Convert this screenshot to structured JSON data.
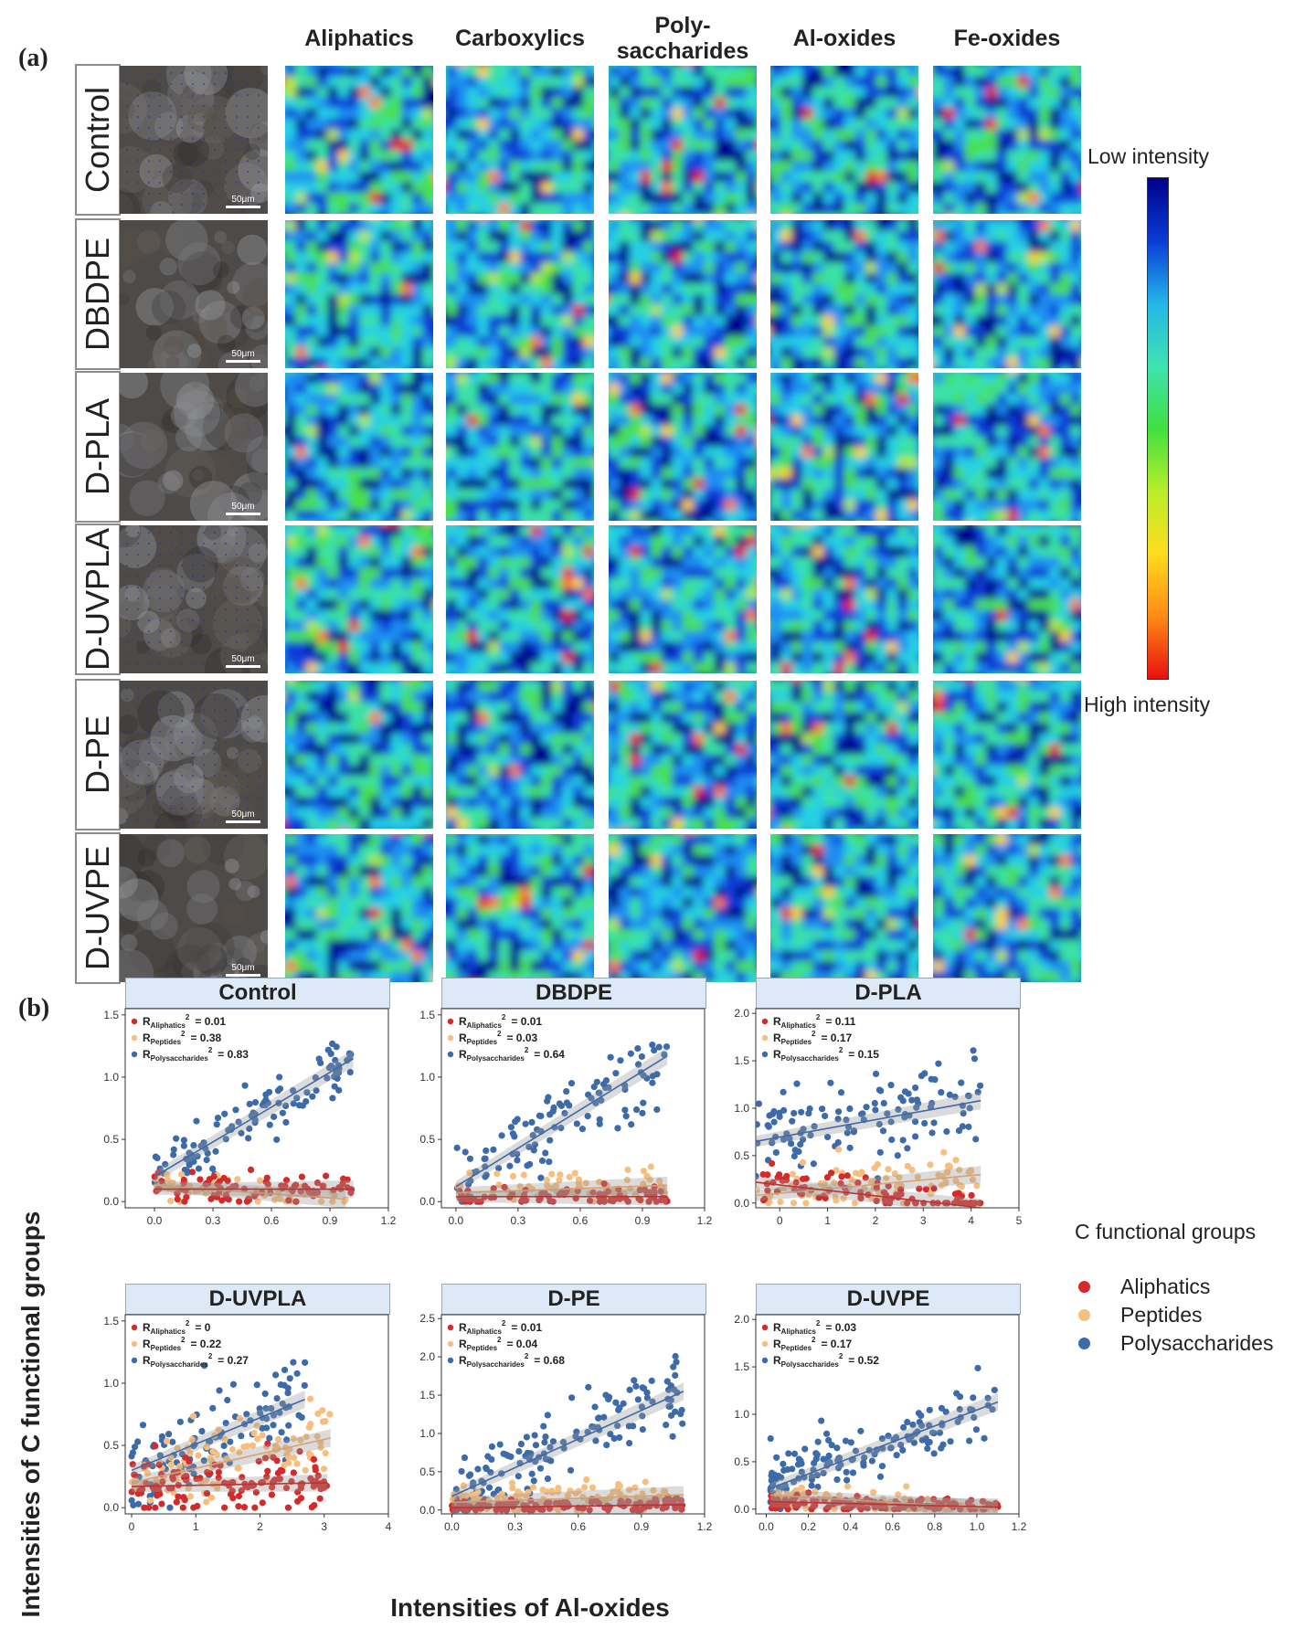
{
  "panel_a_label": "(a)",
  "panel_b_label": "(b)",
  "columns": [
    "Aliphatics",
    "Carboxylics",
    "Poly-\nsaccharides",
    "Al-oxides",
    "Fe-oxides"
  ],
  "rows": [
    "Control",
    "DBDPE",
    "D-PLA",
    "D-UVPLA",
    "D-PE",
    "D-UVPE"
  ],
  "scale_bar_label": "50μm",
  "colorbar": {
    "top_label": "Low intensity",
    "bottom_label": "High intensity",
    "colors": [
      "#00008b",
      "#0a3bd6",
      "#23b6e8",
      "#3de3b0",
      "#40e040",
      "#b8ee2a",
      "#ffdc1e",
      "#ff8a14",
      "#e81010"
    ]
  },
  "legend": {
    "title": "C functional groups",
    "items": [
      {
        "label": "Aliphatics",
        "color": "#d42a2a"
      },
      {
        "label": "Peptides",
        "color": "#f7bf7f"
      },
      {
        "label": "Polysaccharides",
        "color": "#3d6aa8"
      }
    ]
  },
  "y_axis_label": "Intensities of C functional groups",
  "x_axis_label": "Intensities of Al-oxides",
  "chart_data": [
    {
      "type": "scatter",
      "title": "Control",
      "xlim": [
        -0.15,
        1.2
      ],
      "ylim": [
        -0.05,
        1.55
      ],
      "xticks": [
        0,
        0.3,
        0.6,
        0.9,
        1.2
      ],
      "xtick_labels": [
        "0.0",
        "0.3",
        "0.6",
        "0.9",
        "1.2"
      ],
      "yticks": [
        0,
        0.5,
        1.0,
        1.5
      ],
      "ytick_labels": [
        "0.0",
        "0.5",
        "1.0",
        "1.5"
      ],
      "annotations": [
        {
          "sub": "Aliphatics",
          "value": "= 0.01"
        },
        {
          "sub": "Peptides",
          "value": "= 0.38"
        },
        {
          "sub": "Polysaccharides",
          "value": "= 0.83"
        }
      ],
      "series": [
        {
          "name": "Polysaccharides",
          "n": 110,
          "x": [
            0,
            1.02
          ],
          "fit": [
            0.2,
            1.15
          ],
          "spread": 0.11
        },
        {
          "name": "Peptides",
          "n": 70,
          "x": [
            0,
            0.98
          ],
          "fit": [
            0.13,
            0.02
          ],
          "spread": 0.06
        },
        {
          "name": "Aliphatics",
          "n": 80,
          "x": [
            0,
            1.02
          ],
          "fit": [
            0.1,
            0.1
          ],
          "spread": 0.06
        }
      ]
    },
    {
      "type": "scatter",
      "title": "DBDPE",
      "xlim": [
        -0.07,
        1.2
      ],
      "ylim": [
        -0.05,
        1.55
      ],
      "xticks": [
        0,
        0.3,
        0.6,
        0.9,
        1.2
      ],
      "xtick_labels": [
        "0.0",
        "0.3",
        "0.6",
        "0.9",
        "1.2"
      ],
      "yticks": [
        0,
        0.5,
        1.0,
        1.5
      ],
      "ytick_labels": [
        "0.0",
        "0.5",
        "1.0",
        "1.5"
      ],
      "annotations": [
        {
          "sub": "Aliphatics",
          "value": "= 0.01"
        },
        {
          "sub": "Peptides",
          "value": "= 0.03"
        },
        {
          "sub": "Polysaccharides",
          "value": "= 0.64"
        }
      ],
      "series": [
        {
          "name": "Polysaccharides",
          "n": 110,
          "x": [
            0,
            1.02
          ],
          "fit": [
            0.12,
            1.17
          ],
          "spread": 0.18
        },
        {
          "name": "Peptides",
          "n": 70,
          "x": [
            0,
            1.02
          ],
          "fit": [
            0.07,
            0.13
          ],
          "spread": 0.07
        },
        {
          "name": "Aliphatics",
          "n": 80,
          "x": [
            0,
            1.02
          ],
          "fit": [
            0.04,
            0.04
          ],
          "spread": 0.04
        }
      ]
    },
    {
      "type": "scatter",
      "title": "D-PLA",
      "xlim": [
        -0.5,
        5
      ],
      "ylim": [
        -0.05,
        2.05
      ],
      "xticks": [
        0,
        1,
        2,
        3,
        4,
        5
      ],
      "xtick_labels": [
        "0",
        "1",
        "2",
        "3",
        "4",
        "5"
      ],
      "yticks": [
        0,
        0.5,
        1.0,
        1.5,
        2.0
      ],
      "ytick_labels": [
        "0.0",
        "0.5",
        "1.0",
        "1.5",
        "2.0"
      ],
      "annotations": [
        {
          "sub": "Aliphatics",
          "value": "= 0.11"
        },
        {
          "sub": "Peptides",
          "value": "= 0.17"
        },
        {
          "sub": "Polysaccharides",
          "value": "= 0.15"
        }
      ],
      "series": [
        {
          "name": "Polysaccharides",
          "n": 120,
          "x": [
            -0.5,
            4.2
          ],
          "fit": [
            0.65,
            1.08
          ],
          "spread": 0.25
        },
        {
          "name": "Peptides",
          "n": 90,
          "x": [
            -0.5,
            4.2
          ],
          "fit": [
            0.08,
            0.3
          ],
          "spread": 0.12
        },
        {
          "name": "Aliphatics",
          "n": 90,
          "x": [
            -0.5,
            4.2
          ],
          "fit": [
            0.22,
            -0.05
          ],
          "spread": 0.1
        }
      ]
    },
    {
      "type": "scatter",
      "title": "D-UVPLA",
      "xlim": [
        -0.1,
        4
      ],
      "ylim": [
        -0.05,
        1.55
      ],
      "xticks": [
        0,
        1,
        2,
        3,
        4
      ],
      "xtick_labels": [
        "0",
        "1",
        "2",
        "3",
        "4"
      ],
      "yticks": [
        0,
        0.5,
        1.0,
        1.5
      ],
      "ytick_labels": [
        "0.0",
        "0.5",
        "1.0",
        "1.5"
      ],
      "annotations": [
        {
          "sub": "Aliphatics",
          "value": "= 0"
        },
        {
          "sub": "Peptides",
          "value": "= 0.22"
        },
        {
          "sub": "Polysaccharides",
          "value": "= 0.27"
        }
      ],
      "series": [
        {
          "name": "Polysaccharides",
          "n": 110,
          "x": [
            0,
            2.7
          ],
          "fit": [
            0.3,
            0.87
          ],
          "spread": 0.2
        },
        {
          "name": "Peptides",
          "n": 110,
          "x": [
            0,
            3.1
          ],
          "fit": [
            0.2,
            0.56
          ],
          "spread": 0.13
        },
        {
          "name": "Aliphatics",
          "n": 130,
          "x": [
            0,
            3.05
          ],
          "fit": [
            0.17,
            0.2
          ],
          "spread": 0.12
        }
      ]
    },
    {
      "type": "scatter",
      "title": "D-PE",
      "xlim": [
        -0.05,
        1.2
      ],
      "ylim": [
        -0.05,
        2.55
      ],
      "xticks": [
        0,
        0.3,
        0.6,
        0.9,
        1.2
      ],
      "xtick_labels": [
        "0.0",
        "0.3",
        "0.6",
        "0.9",
        "1.2"
      ],
      "yticks": [
        0,
        0.5,
        1.0,
        1.5,
        2.0,
        2.5
      ],
      "ytick_labels": [
        "0.0",
        "0.5",
        "1.0",
        "1.5",
        "2.0",
        "2.5"
      ],
      "annotations": [
        {
          "sub": "Aliphatics",
          "value": "= 0.01"
        },
        {
          "sub": "Peptides",
          "value": "= 0.04"
        },
        {
          "sub": "Polysaccharides",
          "value": "= 0.68"
        }
      ],
      "series": [
        {
          "name": "Polysaccharides",
          "n": 140,
          "x": [
            0,
            1.1
          ],
          "fit": [
            0.18,
            1.55
          ],
          "spread": 0.22
        },
        {
          "name": "Peptides",
          "n": 110,
          "x": [
            0,
            1.1
          ],
          "fit": [
            0.1,
            0.2
          ],
          "spread": 0.1
        },
        {
          "name": "Aliphatics",
          "n": 120,
          "x": [
            0,
            1.1
          ],
          "fit": [
            0.03,
            0.07
          ],
          "spread": 0.04
        }
      ]
    },
    {
      "type": "scatter",
      "title": "D-UVPE",
      "xlim": [
        -0.05,
        1.2
      ],
      "ylim": [
        -0.05,
        2.05
      ],
      "xticks": [
        0,
        0.2,
        0.4,
        0.6,
        0.8,
        1.0,
        1.2
      ],
      "xtick_labels": [
        "0.0",
        "0.2",
        "0.4",
        "0.6",
        "0.8",
        "1.0",
        "1.2"
      ],
      "yticks": [
        0,
        0.5,
        1.0,
        1.5,
        2.0
      ],
      "ytick_labels": [
        "0.0",
        "0.5",
        "1.0",
        "1.5",
        "2.0"
      ],
      "annotations": [
        {
          "sub": "Aliphatics",
          "value": "= 0.03"
        },
        {
          "sub": "Peptides",
          "value": "= 0.17"
        },
        {
          "sub": "Polysaccharides",
          "value": "= 0.52"
        }
      ],
      "series": [
        {
          "name": "Polysaccharides",
          "n": 150,
          "x": [
            0.02,
            1.1
          ],
          "fit": [
            0.22,
            1.13
          ],
          "spread": 0.17
        },
        {
          "name": "Peptides",
          "n": 110,
          "x": [
            0.02,
            1.1
          ],
          "fit": [
            0.15,
            0.0
          ],
          "spread": 0.06
        },
        {
          "name": "Aliphatics",
          "n": 120,
          "x": [
            0.02,
            1.1
          ],
          "fit": [
            0.08,
            0.02
          ],
          "spread": 0.04
        }
      ]
    }
  ]
}
